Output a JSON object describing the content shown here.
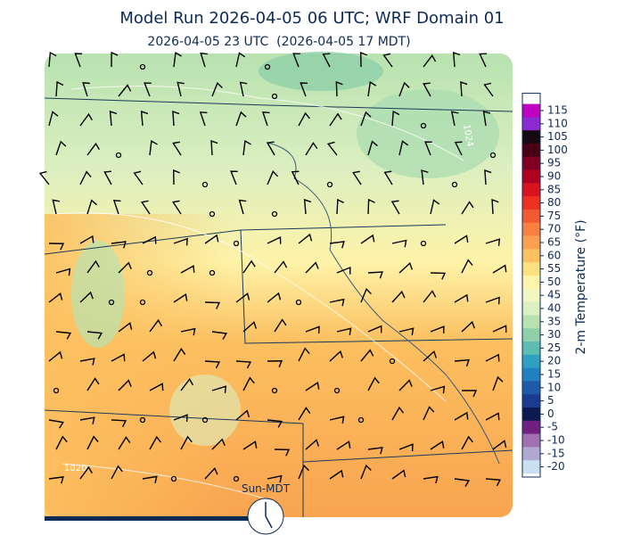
{
  "header": {
    "title": "Model Run 2026-04-05 06 UTC; WRF Domain 01",
    "subtitle": "2026-04-05 23 UTC  (2026-04-05 17 MDT)"
  },
  "map": {
    "contour_labels": [
      "1024",
      "1020"
    ],
    "clock_label": "Sun-MDT"
  },
  "colorbar": {
    "label": "2-m Temperature (°F)",
    "ticks": [
      115,
      110,
      105,
      100,
      95,
      90,
      85,
      80,
      75,
      70,
      65,
      60,
      55,
      50,
      45,
      40,
      35,
      30,
      25,
      20,
      15,
      10,
      5,
      0,
      -5,
      -10,
      -15,
      -20
    ],
    "colors": [
      "#c000c0",
      "#8a2ad0",
      "#160a10",
      "#4a0014",
      "#800022",
      "#b00020",
      "#d8141e",
      "#ee3020",
      "#f45a30",
      "#f88040",
      "#faa050",
      "#fcc060",
      "#fde080",
      "#fef3a8",
      "#f2f6c0",
      "#dcefc0",
      "#b8e2b0",
      "#8fd0a8",
      "#5cbdb0",
      "#30a0c0",
      "#2080c0",
      "#1e5aa8",
      "#1c3a90",
      "#0c1a50",
      "#702080",
      "#a070b0",
      "#b0a8d0",
      "#c8e0f0"
    ]
  }
}
